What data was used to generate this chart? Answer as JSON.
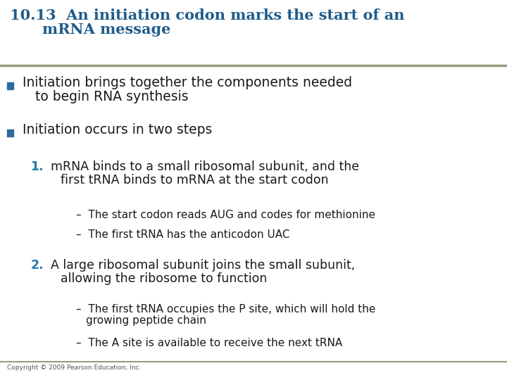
{
  "title_line1": "10.13  An initiation codon marks the start of an",
  "title_line2": "mRNA message",
  "title_color": "#1F5C8B",
  "title_fontsize": 15,
  "bg_color": "#FFFFFF",
  "rule_color": "#9B9B7A",
  "text_color": "#1A1A1A",
  "number_color": "#2178AE",
  "bullet_color": "#2E6B9E",
  "copyright": "Copyright © 2009 Pearson Education, Inc.",
  "bullet1_text_line1": "Initiation brings together the components needed",
  "bullet1_text_line2": "to begin RNA synthesis",
  "bullet2_text": "Initiation occurs in two steps",
  "num1_text_line1": "mRNA binds to a small ribosomal subunit, and the",
  "num1_text_line2": "first tRNA binds to mRNA at the start codon",
  "dash1_text": "The start codon reads AUG and codes for methionine",
  "dash2_text": "The first tRNA has the anticodon UAC",
  "num2_text_line1": "A large ribosomal subunit joins the small subunit,",
  "num2_text_line2": "allowing the ribosome to function",
  "dash3_text_line1": "The first tRNA occupies the P site, which will hold the",
  "dash3_text_line2": "growing peptide chain",
  "dash4_text": "The A site is available to receive the next tRNA"
}
